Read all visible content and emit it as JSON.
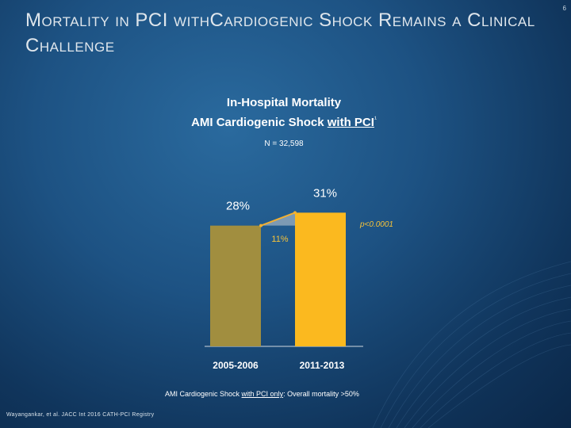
{
  "slide": {
    "title": "Mortality in PCI withCardiogenic Shock Remains a Clinical Challenge",
    "number": "6",
    "citation": "Wayangankar, et al. JACC Int 2016 CATH-PCI Registry"
  },
  "chart": {
    "title_line1": "In-Hospital Mortality",
    "title_line2_prefix": "AMI Cardiogenic Shock ",
    "title_line2_underlined": "with PCI",
    "title_line2_suffix": "¹",
    "n_label": "N = 32,598",
    "footnote_prefix": "AMI Cardiogenic Shock ",
    "footnote_underlined": "with PCI only",
    "footnote_suffix": ": Overall mortality >50%"
  },
  "chart_data": {
    "type": "bar",
    "title": "In-Hospital Mortality — AMI Cardiogenic Shock with PCI",
    "categories": [
      "2005-2006",
      "2011-2013"
    ],
    "values": [
      28,
      31
    ],
    "value_labels": [
      "28%",
      "31%"
    ],
    "ylim": [
      0,
      34
    ],
    "colors": [
      "#a18e3f",
      "#fbb91f"
    ],
    "increase_label": "11%",
    "p_value": "p<0.0001",
    "xlabel": "",
    "ylabel": ""
  }
}
